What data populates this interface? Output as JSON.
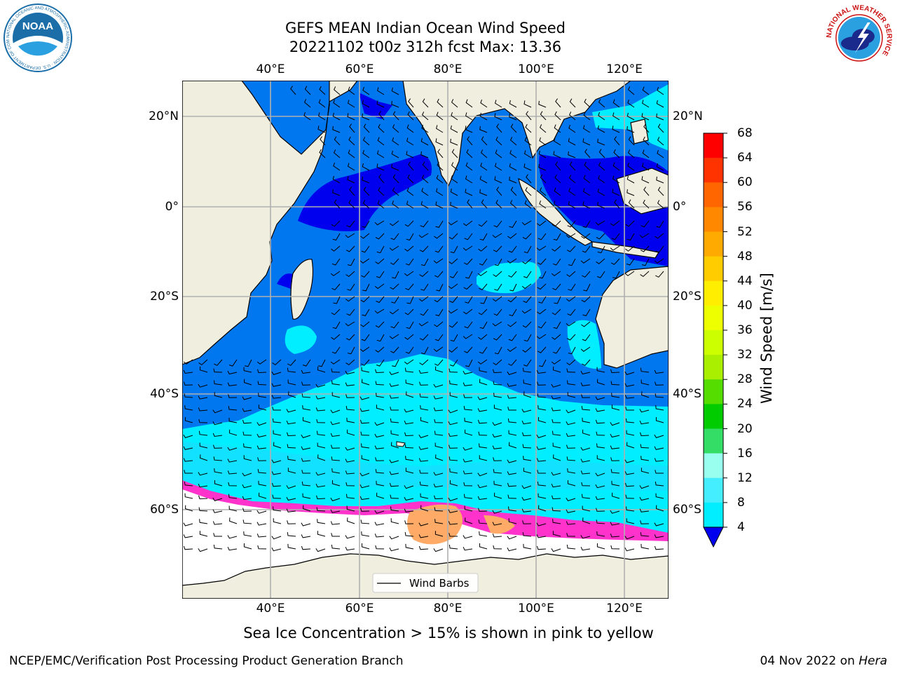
{
  "header": {
    "title_line1": "GEFS MEAN Indian Ocean Wind Speed",
    "title_line2": "20221102 t00z 312h fcst   Max: 13.36",
    "left_logo": "NOAA",
    "left_logo_ring": "NATIONAL OCEANIC AND ATMOSPHERIC ADMINISTRATION · U.S. DEPARTMENT OF COMMERCE",
    "right_logo_ring": "NATIONAL WEATHER SERVICE"
  },
  "map": {
    "projection": "lat-lon",
    "lon_range": [
      20,
      130
    ],
    "lat_range": [
      -73,
      28
    ],
    "lon_ticks": [
      "40°E",
      "60°E",
      "80°E",
      "100°E",
      "120°E"
    ],
    "lat_ticks": [
      "20°N",
      "0°",
      "20°S",
      "40°S",
      "60°S"
    ],
    "grid": true,
    "land_color": "#efeedf",
    "legend_label": "Wind Barbs",
    "max_value": "13.36"
  },
  "colorbar": {
    "title": "Wind Speed [m/s]",
    "labels": [
      "68",
      "64",
      "60",
      "56",
      "52",
      "48",
      "44",
      "40",
      "36",
      "32",
      "28",
      "24",
      "20",
      "16",
      "12",
      "8",
      "4"
    ],
    "colors": [
      "#ff0000",
      "#ff3300",
      "#ff6600",
      "#ff8800",
      "#ffaa00",
      "#ffcc00",
      "#ffee00",
      "#eeff00",
      "#ccff00",
      "#aaee00",
      "#55dd00",
      "#00cc00",
      "#33dd66",
      "#99ffee",
      "#44eeff",
      "#00eeff",
      "#0077ee"
    ],
    "under_color": "#0000ee"
  },
  "chart_data": {
    "type": "heatmap",
    "title": "GEFS MEAN Indian Ocean Wind Speed",
    "subtitle": "20221102 t00z 312h fcst   Max: 13.36",
    "variable": "Wind Speed [m/s]",
    "color_levels": [
      4,
      8,
      12,
      16,
      20,
      24,
      28,
      32,
      36,
      40,
      44,
      48,
      52,
      56,
      60,
      64,
      68
    ],
    "max": 13.36,
    "lon_ticks": [
      40,
      60,
      80,
      100,
      120
    ],
    "lat_ticks": [
      20,
      0,
      -20,
      -40,
      -60
    ]
  },
  "footer": {
    "caption": "Sea Ice Concentration > 15% is shown in pink to yellow",
    "branch": "NCEP/EMC/Verification Post Processing Product Generation Branch",
    "date": "04 Nov 2022 on ",
    "machine": "Hera"
  }
}
